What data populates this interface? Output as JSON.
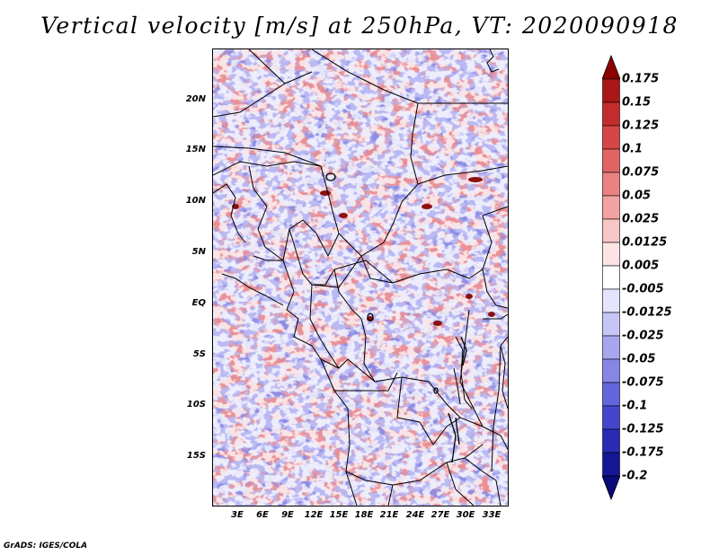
{
  "title": "Vertical velocity [m/s] at 250hPa, VT: 2020090918",
  "credit": "GrADS: IGES/COLA",
  "map": {
    "lat_labels": [
      "20N",
      "15N",
      "10N",
      "5N",
      "EQ",
      "5S",
      "10S",
      "15S"
    ],
    "lon_labels": [
      "3E",
      "6E",
      "9E",
      "12E",
      "15E",
      "18E",
      "21E",
      "24E",
      "27E",
      "30E",
      "33E"
    ]
  },
  "colorbar": {
    "labels": [
      "0.175",
      "0.15",
      "0.125",
      "0.1",
      "0.075",
      "0.05",
      "0.025",
      "0.0125",
      "0.005",
      "-0.005",
      "-0.0125",
      "-0.025",
      "-0.05",
      "-0.075",
      "-0.1",
      "-0.125",
      "-0.175",
      "-0.2"
    ],
    "colors": [
      "#8c0000",
      "#a81616",
      "#c22c2c",
      "#d64646",
      "#e06464",
      "#ea8282",
      "#f2a2a2",
      "#f8c6c6",
      "#fce4e4",
      "#ffffff",
      "#e4e4fc",
      "#c6c6f6",
      "#a6a6ee",
      "#8686e6",
      "#6464dc",
      "#4646cc",
      "#2a2ab4",
      "#161696",
      "#0a0a78"
    ]
  }
}
